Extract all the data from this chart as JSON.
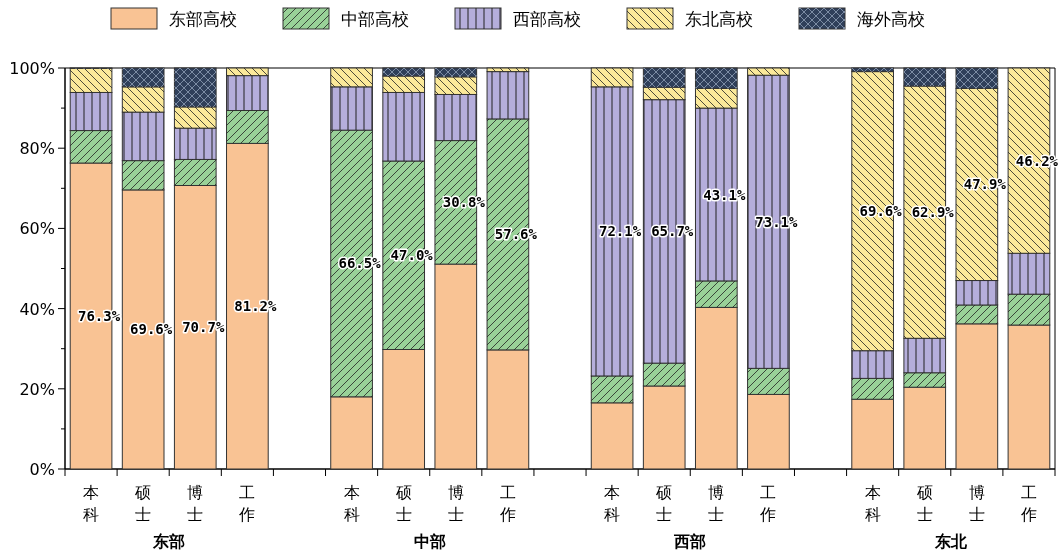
{
  "chart_data": {
    "type": "bar",
    "stacked": true,
    "legend": "top",
    "data_labels": false,
    "categories": [
      "本科",
      "硕士",
      "博士",
      "工作",
      null,
      "本科",
      "硕士",
      "博士",
      "工作",
      null,
      "本科",
      "硕士",
      "博士",
      "工作",
      null,
      "本科",
      "硕士",
      "博士",
      "工作"
    ],
    "ylim": [
      0,
      100
    ],
    "yticks": [
      {
        "value": 0,
        "label": "0%"
      },
      {
        "value": 10,
        "label": null
      },
      {
        "value": 20,
        "label": "20%"
      },
      {
        "value": 30,
        "label": null
      },
      {
        "value": 40,
        "label": "40%"
      },
      {
        "value": 50,
        "label": null
      },
      {
        "value": 60,
        "label": "60%"
      },
      {
        "value": 70,
        "label": null
      },
      {
        "value": 80,
        "label": "80%"
      },
      {
        "value": 90,
        "label": null
      },
      {
        "value": 100,
        "label": "100%"
      }
    ],
    "annotations": [
      "东部",
      "中部",
      "西部",
      "东北"
    ],
    "series": [
      {
        "name": "东部高校",
        "color": "#f9c394",
        "values": [
          76.3,
          69.6,
          70.7,
          81.2,
          null,
          18.0,
          29.8,
          51.1,
          29.7,
          null,
          16.5,
          20.7,
          40.3,
          18.6,
          null,
          17.4,
          20.4,
          36.2,
          35.9
        ],
        "value_labels": [
          "76.3%",
          "69.6%",
          "70.7%",
          "81.2%",
          null,
          null,
          null,
          null,
          null,
          null,
          null,
          null,
          null,
          null,
          null,
          null,
          null,
          null,
          null
        ]
      },
      {
        "name": "中部高校",
        "color": "#99d198",
        "values": [
          8.1,
          7.3,
          6.5,
          8.2,
          null,
          66.5,
          47.0,
          30.8,
          57.6,
          null,
          6.7,
          5.7,
          6.6,
          6.5,
          null,
          5.2,
          3.6,
          4.7,
          7.7
        ],
        "value_labels": [
          null,
          null,
          null,
          null,
          null,
          "66.5%",
          "47.0%",
          "30.8%",
          "57.6%",
          null,
          null,
          null,
          null,
          null,
          null,
          null,
          null,
          null,
          null
        ]
      },
      {
        "name": "西部高校",
        "color": "#b5aedb",
        "values": [
          9.5,
          12.1,
          7.8,
          8.7,
          null,
          10.8,
          17.1,
          11.5,
          11.8,
          null,
          72.1,
          65.7,
          43.1,
          73.1,
          null,
          6.9,
          8.6,
          6.1,
          10.2
        ],
        "value_labels": [
          null,
          null,
          null,
          null,
          null,
          null,
          null,
          null,
          null,
          null,
          "72.1%",
          "65.7%",
          "43.1%",
          "73.1%",
          null,
          null,
          null,
          null,
          null
        ]
      },
      {
        "name": "东北高校",
        "color": "#fbe99a",
        "values": [
          6.0,
          6.3,
          5.3,
          1.9,
          null,
          4.7,
          4.1,
          4.4,
          0.9,
          null,
          4.7,
          3.1,
          4.9,
          1.8,
          null,
          69.6,
          62.9,
          47.9,
          46.2
        ],
        "value_labels": [
          null,
          null,
          null,
          null,
          null,
          null,
          null,
          null,
          null,
          null,
          null,
          null,
          null,
          null,
          null,
          "69.6%",
          "62.9%",
          "47.9%",
          "46.2%"
        ]
      },
      {
        "name": "海外高校",
        "color": "#2f3f5a",
        "values": [
          0.1,
          4.7,
          9.7,
          0,
          null,
          0,
          2.0,
          2.2,
          0,
          null,
          0,
          4.8,
          5.1,
          0,
          null,
          0.9,
          4.5,
          5.1,
          0
        ]
      }
    ]
  }
}
